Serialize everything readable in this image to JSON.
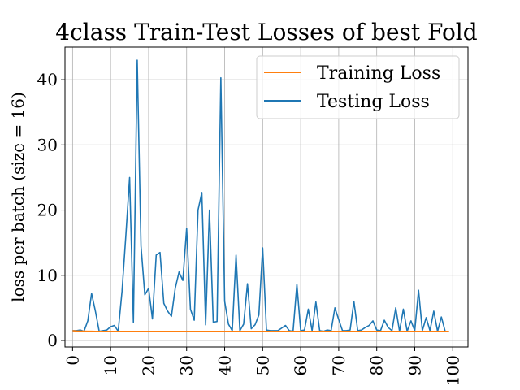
{
  "chart_data": {
    "type": "line",
    "title": "4class Train-Test Losses of best Fold",
    "xlabel": "",
    "ylabel": "loss per batch (size = 16)",
    "xlim": [
      -2,
      104
    ],
    "ylim": [
      -1,
      45
    ],
    "xticks": [
      0,
      10,
      20,
      30,
      40,
      50,
      60,
      70,
      80,
      90,
      100
    ],
    "yticks": [
      0,
      10,
      20,
      30,
      40
    ],
    "grid": true,
    "legend_position": "top-right",
    "series": [
      {
        "name": "Training Loss",
        "color": "#ff7f0e",
        "x": [
          0,
          1,
          2,
          3,
          4,
          5,
          6,
          7,
          8,
          9,
          10,
          11,
          12,
          13,
          14,
          15,
          16,
          17,
          18,
          19,
          20,
          21,
          22,
          23,
          24,
          25,
          26,
          27,
          28,
          29,
          30,
          31,
          32,
          33,
          34,
          35,
          36,
          37,
          38,
          39,
          40,
          41,
          42,
          43,
          44,
          45,
          46,
          47,
          48,
          49,
          50,
          51,
          52,
          53,
          54,
          55,
          56,
          57,
          58,
          59,
          60,
          61,
          62,
          63,
          64,
          65,
          66,
          67,
          68,
          69,
          70,
          71,
          72,
          73,
          74,
          75,
          76,
          77,
          78,
          79,
          80,
          81,
          82,
          83,
          84,
          85,
          86,
          87,
          88,
          89,
          90,
          91,
          92,
          93,
          94,
          95,
          96,
          97,
          98,
          99
        ],
        "values": [
          1.5,
          1.45,
          1.43,
          1.42,
          1.41,
          1.41,
          1.4,
          1.4,
          1.4,
          1.4,
          1.4,
          1.4,
          1.4,
          1.4,
          1.4,
          1.4,
          1.39,
          1.39,
          1.39,
          1.39,
          1.39,
          1.39,
          1.39,
          1.39,
          1.39,
          1.39,
          1.39,
          1.39,
          1.39,
          1.39,
          1.39,
          1.39,
          1.39,
          1.39,
          1.39,
          1.39,
          1.39,
          1.39,
          1.39,
          1.39,
          1.39,
          1.39,
          1.39,
          1.39,
          1.39,
          1.39,
          1.39,
          1.39,
          1.39,
          1.39,
          1.39,
          1.39,
          1.39,
          1.39,
          1.39,
          1.39,
          1.39,
          1.39,
          1.39,
          1.39,
          1.39,
          1.39,
          1.39,
          1.39,
          1.39,
          1.39,
          1.39,
          1.39,
          1.39,
          1.39,
          1.39,
          1.39,
          1.39,
          1.39,
          1.39,
          1.39,
          1.39,
          1.39,
          1.39,
          1.39,
          1.39,
          1.39,
          1.39,
          1.39,
          1.39,
          1.39,
          1.39,
          1.39,
          1.39,
          1.39,
          1.39,
          1.39,
          1.39,
          1.39,
          1.39,
          1.39,
          1.39,
          1.39,
          1.39,
          1.39
        ]
      },
      {
        "name": "Testing Loss",
        "color": "#1f77b4",
        "x": [
          0,
          1,
          2,
          3,
          4,
          5,
          6,
          7,
          8,
          9,
          10,
          11,
          12,
          13,
          14,
          15,
          16,
          17,
          18,
          19,
          20,
          21,
          22,
          23,
          24,
          25,
          26,
          27,
          28,
          29,
          30,
          31,
          32,
          33,
          34,
          35,
          36,
          37,
          38,
          39,
          40,
          41,
          42,
          43,
          44,
          45,
          46,
          47,
          48,
          49,
          50,
          51,
          52,
          53,
          54,
          55,
          56,
          57,
          58,
          59,
          60,
          61,
          62,
          63,
          64,
          65,
          66,
          67,
          68,
          69,
          70,
          71,
          72,
          73,
          74,
          75,
          76,
          77,
          78,
          79,
          80,
          81,
          82,
          83,
          84,
          85,
          86,
          87,
          88,
          89,
          90,
          91,
          92,
          93,
          94,
          95,
          96,
          97,
          98,
          99
        ],
        "values": [
          1.5,
          1.5,
          1.6,
          1.4,
          3.0,
          7.2,
          4.5,
          1.4,
          1.5,
          1.6,
          2.1,
          2.3,
          1.4,
          7.5,
          16.0,
          25.0,
          2.8,
          43.0,
          14.5,
          7.0,
          8.0,
          3.3,
          13.1,
          13.5,
          5.7,
          4.5,
          3.7,
          8.0,
          10.5,
          9.2,
          17.2,
          4.8,
          3.1,
          20.0,
          22.7,
          2.4,
          20.0,
          2.8,
          2.9,
          40.3,
          6.0,
          2.5,
          1.5,
          13.1,
          1.5,
          2.5,
          8.7,
          1.8,
          2.4,
          3.9,
          14.2,
          1.6,
          1.5,
          1.5,
          1.5,
          1.9,
          2.3,
          1.5,
          1.4,
          8.6,
          1.5,
          1.6,
          4.8,
          1.5,
          5.9,
          1.5,
          1.4,
          1.6,
          1.5,
          5.0,
          3.2,
          1.5,
          1.5,
          1.6,
          6.0,
          1.5,
          1.6,
          2.0,
          2.3,
          3.0,
          1.6,
          1.5,
          3.1,
          2.0,
          1.5,
          5.0,
          1.4,
          4.8,
          1.4,
          3.0,
          1.5,
          7.7,
          1.5,
          3.5,
          1.5,
          4.5,
          1.4,
          3.6,
          1.4,
          1.4
        ]
      }
    ]
  }
}
